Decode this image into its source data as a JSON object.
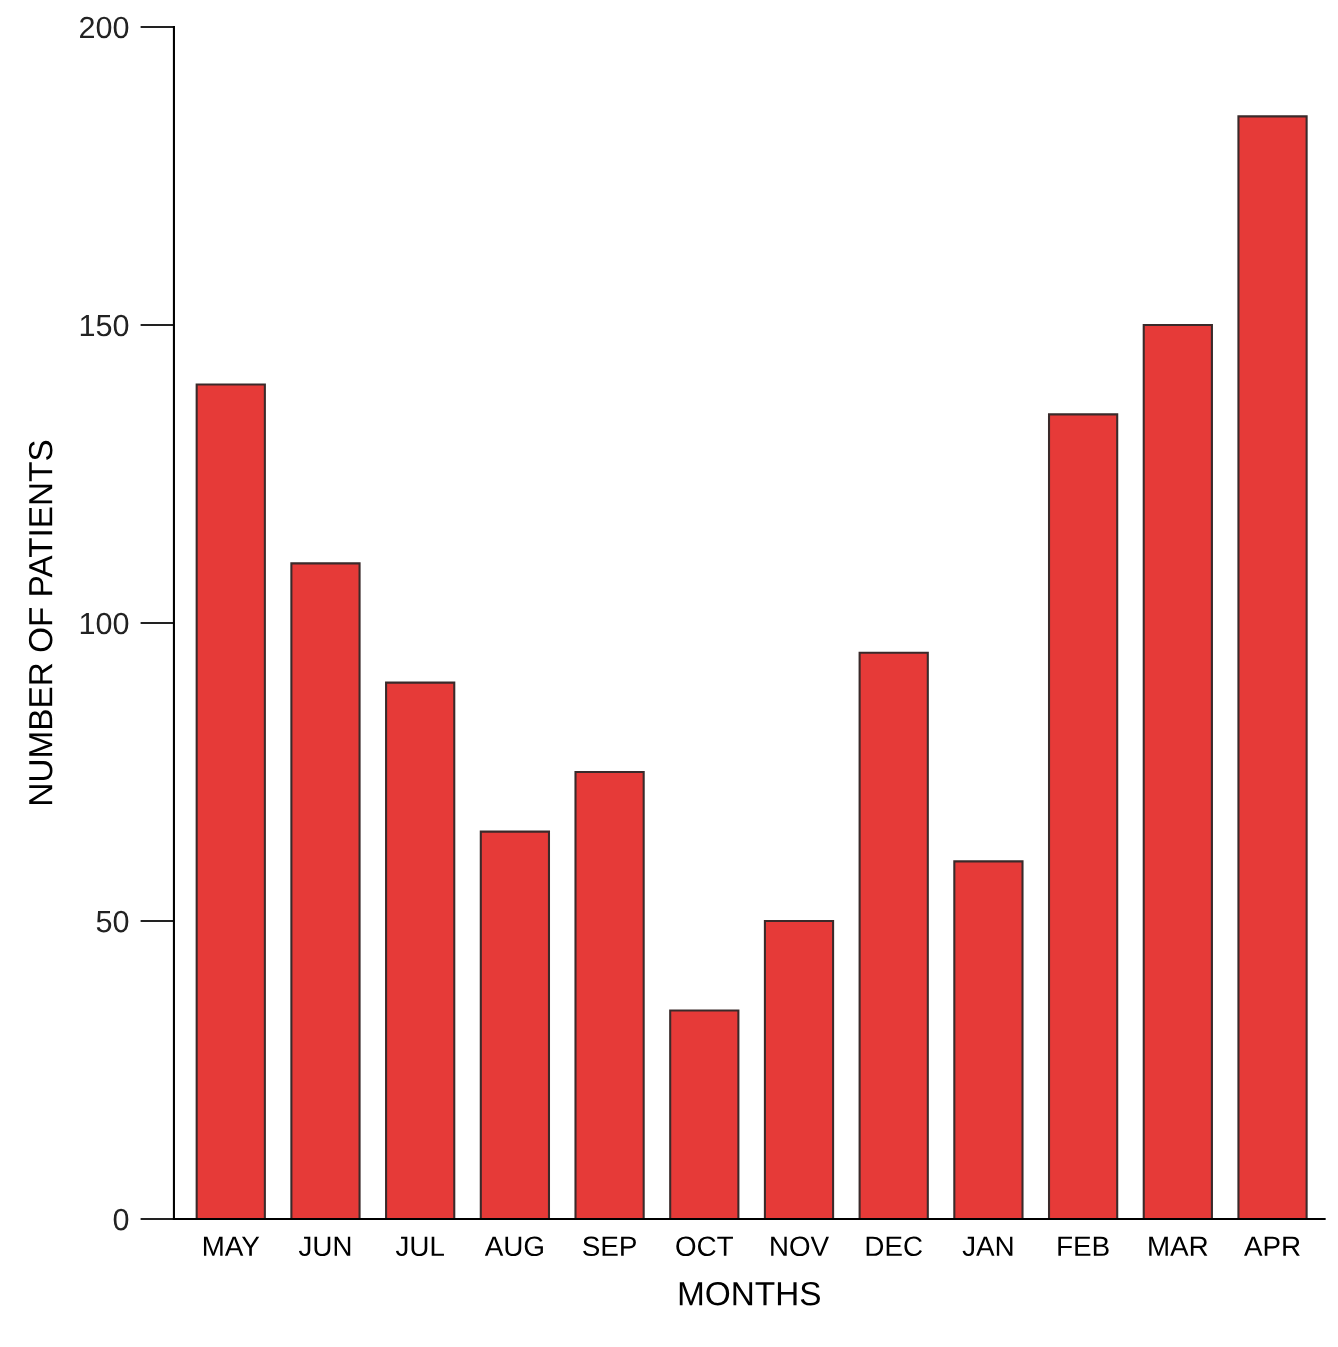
{
  "chart_data": {
    "type": "bar",
    "xlabel": "MONTHS",
    "ylabel": "NUMBER OF PATIENTS",
    "categories": [
      "MAY",
      "JUN",
      "JUL",
      "AUG",
      "SEP",
      "OCT",
      "NOV",
      "DEC",
      "JAN",
      "FEB",
      "MAR",
      "APR"
    ],
    "values": [
      140,
      110,
      90,
      65,
      75,
      35,
      50,
      95,
      60,
      135,
      150,
      185
    ],
    "color": "#e63a38",
    "ylim": [
      0,
      200
    ],
    "yticks": [
      0,
      50,
      100,
      150,
      200
    ],
    "grid": false,
    "legend": false
  }
}
